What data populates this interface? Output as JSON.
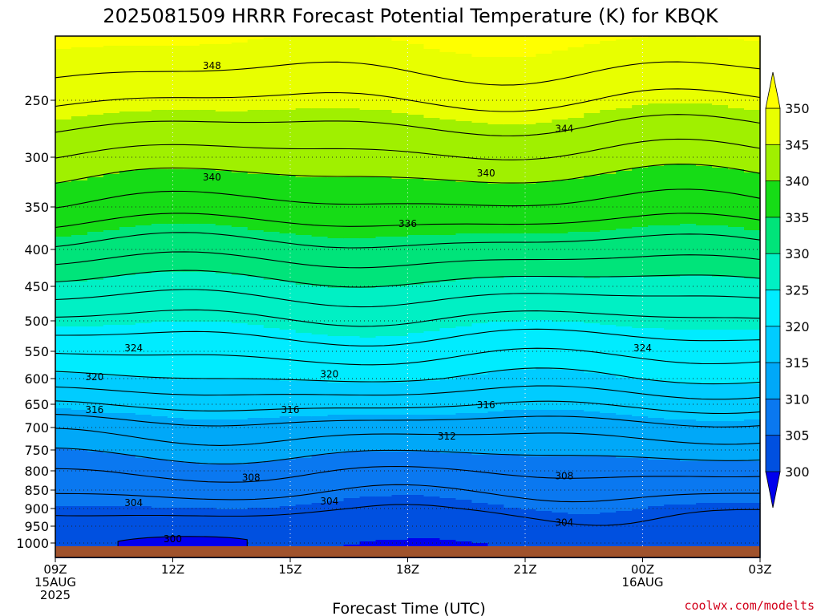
{
  "chart_data": {
    "type": "heatmap",
    "title": "2025081509 HRRR Forecast Potential Temperature (K) for KBQK",
    "xlabel": "Forecast Time (UTC)",
    "ylabel": "",
    "credit": "coolwx.com/modelts",
    "x_ticks": [
      {
        "hour": 0,
        "lines": [
          "09Z",
          "15AUG",
          "2025"
        ]
      },
      {
        "hour": 3,
        "lines": [
          "12Z"
        ]
      },
      {
        "hour": 6,
        "lines": [
          "15Z"
        ]
      },
      {
        "hour": 9,
        "lines": [
          "18Z"
        ]
      },
      {
        "hour": 12,
        "lines": [
          "21Z"
        ]
      },
      {
        "hour": 15,
        "lines": [
          "00Z",
          "16AUG"
        ]
      },
      {
        "hour": 18,
        "lines": [
          "03Z"
        ]
      }
    ],
    "y_ticks": [
      250,
      300,
      350,
      400,
      450,
      500,
      550,
      600,
      650,
      700,
      750,
      800,
      850,
      900,
      950,
      1000
    ],
    "x_range_hours": [
      0,
      18
    ],
    "y_range_hPa": [
      200,
      1010
    ],
    "colorbar": {
      "levels": [
        300,
        305,
        310,
        315,
        320,
        325,
        330,
        335,
        340,
        345,
        350
      ],
      "labels": [
        "300",
        "305",
        "310",
        "315",
        "320",
        "325",
        "330",
        "335",
        "340",
        "345",
        "350"
      ],
      "colors": [
        "#0000ee",
        "#0050e0",
        "#0a78f0",
        "#00a8f8",
        "#00ccff",
        "#00ecff",
        "#00f0c4",
        "#00e47a",
        "#16dc16",
        "#a0f000",
        "#e8ff00",
        "#ffff00"
      ]
    },
    "contour_interval": 2,
    "contour_labels": [
      {
        "value": 348,
        "hour": 4.0,
        "p": 223
      },
      {
        "value": 344,
        "hour": 13.0,
        "p": 275
      },
      {
        "value": 340,
        "hour": 4.0,
        "p": 320
      },
      {
        "value": 340,
        "hour": 11.0,
        "p": 316
      },
      {
        "value": 336,
        "hour": 9.0,
        "p": 370
      },
      {
        "value": 324,
        "hour": 2.0,
        "p": 545
      },
      {
        "value": 324,
        "hour": 15.0,
        "p": 545
      },
      {
        "value": 320,
        "hour": 1.0,
        "p": 597
      },
      {
        "value": 320,
        "hour": 7.0,
        "p": 592
      },
      {
        "value": 316,
        "hour": 1.0,
        "p": 662
      },
      {
        "value": 316,
        "hour": 6.0,
        "p": 662
      },
      {
        "value": 316,
        "hour": 11.0,
        "p": 652
      },
      {
        "value": 312,
        "hour": 10.0,
        "p": 720
      },
      {
        "value": 308,
        "hour": 5.0,
        "p": 818
      },
      {
        "value": 308,
        "hour": 13.0,
        "p": 814
      },
      {
        "value": 304,
        "hour": 2.0,
        "p": 885
      },
      {
        "value": 304,
        "hour": 7.0,
        "p": 880
      },
      {
        "value": 304,
        "hour": 13.0,
        "p": 940
      },
      {
        "value": 300,
        "hour": 3.0,
        "p": 988
      }
    ],
    "profile_levels_hPa": [
      200,
      250,
      300,
      350,
      400,
      450,
      500,
      550,
      600,
      650,
      700,
      750,
      800,
      850,
      900,
      950,
      1000
    ],
    "profile_K": [
      350.5,
      346.0,
      341.5,
      337.5,
      333.2,
      329.2,
      325.6,
      322.6,
      319.9,
      316.4,
      313.0,
      310.6,
      308.3,
      306.4,
      304.5,
      302.6,
      301.0
    ]
  }
}
